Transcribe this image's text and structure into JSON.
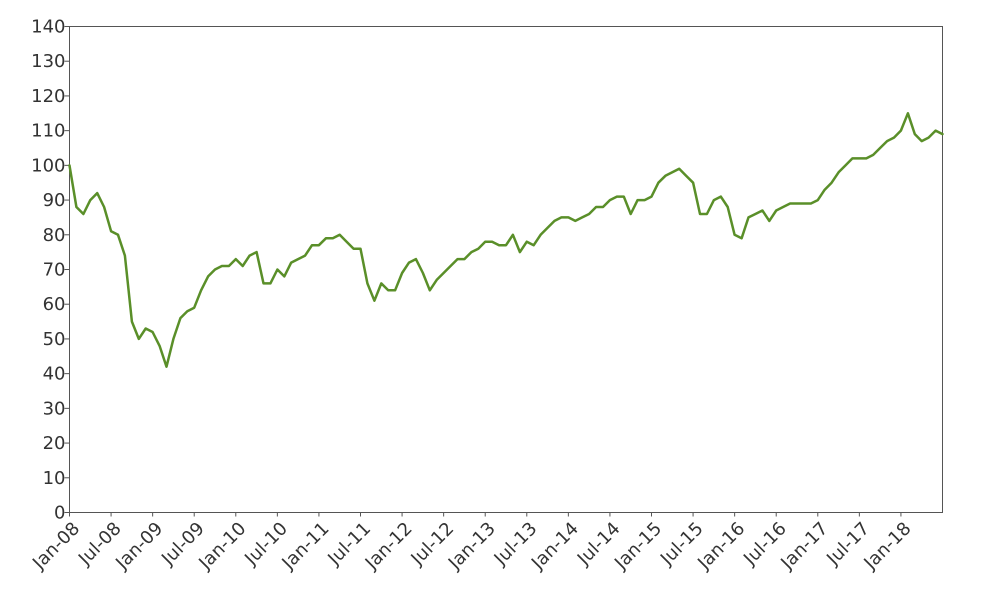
{
  "chart_data": {
    "type": "line",
    "title": "",
    "xlabel": "",
    "ylabel": "",
    "ylim": [
      0,
      140
    ],
    "yticks": [
      0,
      10,
      20,
      30,
      40,
      50,
      60,
      70,
      80,
      90,
      100,
      110,
      120,
      130,
      140
    ],
    "xlim": [
      "2008-01",
      "2018-07"
    ],
    "xtick_labels": [
      "Jan-08",
      "Jul-08",
      "Jan-09",
      "Jul-09",
      "Jan-10",
      "Jul-10",
      "Jan-11",
      "Jul-11",
      "Jan-12",
      "Jul-12",
      "Jan-13",
      "Jul-13",
      "Jan-14",
      "Jul-14",
      "Jan-15",
      "Jul-15",
      "Jan-16",
      "Jul-16",
      "Jan-17",
      "Jul-17",
      "Jan-18"
    ],
    "grid": false,
    "legend": "none",
    "series_color": "#5a8f29",
    "series": [
      {
        "x": [
          "2008-01",
          "2008-02",
          "2008-03",
          "2008-04",
          "2008-05",
          "2008-06",
          "2008-07",
          "2008-08",
          "2008-09",
          "2008-10",
          "2008-11",
          "2008-12",
          "2009-01",
          "2009-02",
          "2009-03",
          "2009-04",
          "2009-05",
          "2009-06",
          "2009-07",
          "2009-08",
          "2009-09",
          "2009-10",
          "2009-11",
          "2009-12",
          "2010-01",
          "2010-02",
          "2010-03",
          "2010-04",
          "2010-05",
          "2010-06",
          "2010-07",
          "2010-08",
          "2010-09",
          "2010-10",
          "2010-11",
          "2010-12",
          "2011-01",
          "2011-02",
          "2011-03",
          "2011-04",
          "2011-05",
          "2011-06",
          "2011-07",
          "2011-08",
          "2011-09",
          "2011-10",
          "2011-11",
          "2011-12",
          "2012-01",
          "2012-02",
          "2012-03",
          "2012-04",
          "2012-05",
          "2012-06",
          "2012-07",
          "2012-08",
          "2012-09",
          "2012-10",
          "2012-11",
          "2012-12",
          "2013-01",
          "2013-02",
          "2013-03",
          "2013-04",
          "2013-05",
          "2013-06",
          "2013-07",
          "2013-08",
          "2013-09",
          "2013-10",
          "2013-11",
          "2013-12",
          "2014-01",
          "2014-02",
          "2014-03",
          "2014-04",
          "2014-05",
          "2014-06",
          "2014-07",
          "2014-08",
          "2014-09",
          "2014-10",
          "2014-11",
          "2014-12",
          "2015-01",
          "2015-02",
          "2015-03",
          "2015-04",
          "2015-05",
          "2015-06",
          "2015-07",
          "2015-08",
          "2015-09",
          "2015-10",
          "2015-11",
          "2015-12",
          "2016-01",
          "2016-02",
          "2016-03",
          "2016-04",
          "2016-05",
          "2016-06",
          "2016-07",
          "2016-08",
          "2016-09",
          "2016-10",
          "2016-11",
          "2016-12",
          "2017-01",
          "2017-02",
          "2017-03",
          "2017-04",
          "2017-05",
          "2017-06",
          "2017-07",
          "2017-08",
          "2017-09",
          "2017-10",
          "2017-11",
          "2017-12",
          "2018-01",
          "2018-02",
          "2018-03",
          "2018-04",
          "2018-05",
          "2018-06",
          "2018-07"
        ],
        "values": [
          100,
          88,
          86,
          90,
          92,
          88,
          81,
          80,
          74,
          55,
          50,
          53,
          52,
          48,
          42,
          50,
          56,
          58,
          59,
          64,
          68,
          70,
          71,
          71,
          73,
          71,
          74,
          75,
          66,
          66,
          70,
          68,
          72,
          73,
          74,
          77,
          77,
          79,
          79,
          80,
          78,
          76,
          76,
          66,
          61,
          66,
          64,
          64,
          69,
          72,
          73,
          69,
          64,
          67,
          69,
          71,
          73,
          73,
          75,
          76,
          78,
          78,
          77,
          77,
          80,
          75,
          78,
          77,
          80,
          82,
          84,
          85,
          85,
          84,
          85,
          86,
          88,
          88,
          90,
          91,
          91,
          86,
          90,
          90,
          91,
          95,
          97,
          98,
          99,
          97,
          95,
          86,
          86,
          90,
          91,
          88,
          80,
          79,
          85,
          86,
          87,
          84,
          87,
          88,
          89,
          89,
          89,
          89,
          90,
          93,
          95,
          98,
          100,
          102,
          102,
          102,
          103,
          105,
          107,
          108,
          110,
          115,
          109,
          107,
          108,
          110,
          109
        ]
      }
    ]
  }
}
